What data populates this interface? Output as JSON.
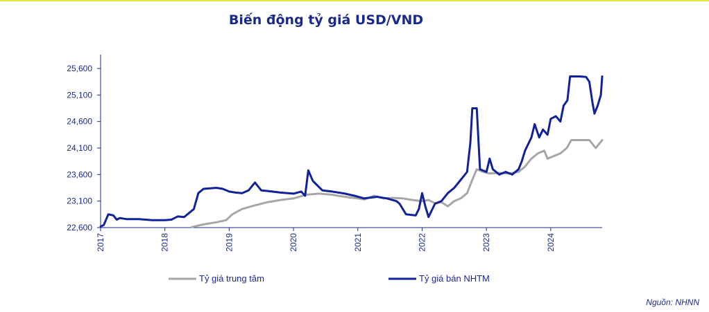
{
  "page": {
    "title": "Biến động tỷ giá USD/VND",
    "source": "Nguồn: NHNN"
  },
  "chart_data": {
    "type": "line",
    "title": "Biến động tỷ giá USD/VND",
    "xlabel": "",
    "ylabel": "",
    "xlim": [
      2017.0,
      2024.8
    ],
    "ylim": [
      22600,
      25600
    ],
    "y_ticks": [
      "22,600",
      "23,100",
      "23,600",
      "24,100",
      "24,600",
      "25,100",
      "25,600"
    ],
    "y_tick_values": [
      22600,
      23100,
      23600,
      24100,
      24600,
      25100,
      25600
    ],
    "x_ticks": [
      "2017",
      "2018",
      "2019",
      "2020",
      "2021",
      "2022",
      "2023",
      "2024"
    ],
    "x_tick_values": [
      2017,
      2018,
      2019,
      2020,
      2021,
      2022,
      2023,
      2024
    ],
    "grid": false,
    "legend_position": "bottom",
    "colors": {
      "text": "#1a2a8c",
      "axis": "#1a2a8c"
    },
    "series": [
      {
        "name": "Tỷ giá trung tâm",
        "color": "#a6a6a6",
        "points": [
          [
            2018.42,
            22610
          ],
          [
            2018.6,
            22660
          ],
          [
            2018.8,
            22700
          ],
          [
            2018.95,
            22740
          ],
          [
            2019.05,
            22850
          ],
          [
            2019.2,
            22950
          ],
          [
            2019.4,
            23020
          ],
          [
            2019.6,
            23080
          ],
          [
            2019.8,
            23120
          ],
          [
            2020.0,
            23150
          ],
          [
            2020.2,
            23220
          ],
          [
            2020.4,
            23240
          ],
          [
            2020.6,
            23220
          ],
          [
            2020.8,
            23180
          ],
          [
            2021.0,
            23150
          ],
          [
            2021.1,
            23130
          ],
          [
            2021.25,
            23200
          ],
          [
            2021.4,
            23150
          ],
          [
            2021.55,
            23160
          ],
          [
            2021.7,
            23150
          ],
          [
            2021.85,
            23120
          ],
          [
            2022.0,
            23100
          ],
          [
            2022.1,
            23120
          ],
          [
            2022.2,
            23060
          ],
          [
            2022.3,
            23080
          ],
          [
            2022.4,
            23000
          ],
          [
            2022.5,
            23100
          ],
          [
            2022.6,
            23150
          ],
          [
            2022.7,
            23250
          ],
          [
            2022.78,
            23500
          ],
          [
            2022.85,
            23700
          ],
          [
            2022.95,
            23650
          ],
          [
            2023.05,
            23620
          ],
          [
            2023.2,
            23630
          ],
          [
            2023.35,
            23620
          ],
          [
            2023.5,
            23650
          ],
          [
            2023.6,
            23750
          ],
          [
            2023.7,
            23900
          ],
          [
            2023.8,
            24000
          ],
          [
            2023.9,
            24050
          ],
          [
            2023.95,
            23900
          ],
          [
            2024.05,
            23950
          ],
          [
            2024.15,
            24000
          ],
          [
            2024.25,
            24100
          ],
          [
            2024.32,
            24250
          ],
          [
            2024.45,
            24250
          ],
          [
            2024.6,
            24250
          ],
          [
            2024.7,
            24100
          ],
          [
            2024.8,
            24250
          ]
        ]
      },
      {
        "name": "Tỷ giá bán NHTM",
        "color": "#10219a",
        "points": [
          [
            2017.0,
            22620
          ],
          [
            2017.05,
            22650
          ],
          [
            2017.12,
            22850
          ],
          [
            2017.2,
            22830
          ],
          [
            2017.25,
            22750
          ],
          [
            2017.3,
            22780
          ],
          [
            2017.4,
            22760
          ],
          [
            2017.6,
            22760
          ],
          [
            2017.8,
            22740
          ],
          [
            2018.0,
            22740
          ],
          [
            2018.1,
            22750
          ],
          [
            2018.2,
            22810
          ],
          [
            2018.3,
            22800
          ],
          [
            2018.4,
            22900
          ],
          [
            2018.45,
            22950
          ],
          [
            2018.52,
            23250
          ],
          [
            2018.6,
            23330
          ],
          [
            2018.8,
            23350
          ],
          [
            2018.9,
            23330
          ],
          [
            2019.0,
            23280
          ],
          [
            2019.1,
            23260
          ],
          [
            2019.2,
            23250
          ],
          [
            2019.3,
            23300
          ],
          [
            2019.4,
            23450
          ],
          [
            2019.5,
            23300
          ],
          [
            2019.6,
            23290
          ],
          [
            2019.8,
            23260
          ],
          [
            2020.0,
            23240
          ],
          [
            2020.12,
            23280
          ],
          [
            2020.18,
            23200
          ],
          [
            2020.23,
            23680
          ],
          [
            2020.3,
            23480
          ],
          [
            2020.45,
            23300
          ],
          [
            2020.6,
            23280
          ],
          [
            2020.8,
            23240
          ],
          [
            2020.95,
            23200
          ],
          [
            2021.1,
            23150
          ],
          [
            2021.3,
            23180
          ],
          [
            2021.45,
            23150
          ],
          [
            2021.6,
            23100
          ],
          [
            2021.65,
            23050
          ],
          [
            2021.75,
            22850
          ],
          [
            2021.9,
            22830
          ],
          [
            2021.95,
            22950
          ],
          [
            2022.0,
            23250
          ],
          [
            2022.05,
            23000
          ],
          [
            2022.1,
            22800
          ],
          [
            2022.2,
            23050
          ],
          [
            2022.3,
            23100
          ],
          [
            2022.4,
            23250
          ],
          [
            2022.5,
            23350
          ],
          [
            2022.6,
            23500
          ],
          [
            2022.7,
            23650
          ],
          [
            2022.75,
            24200
          ],
          [
            2022.78,
            24850
          ],
          [
            2022.85,
            24850
          ],
          [
            2022.9,
            23700
          ],
          [
            2023.0,
            23650
          ],
          [
            2023.05,
            23900
          ],
          [
            2023.1,
            23700
          ],
          [
            2023.2,
            23600
          ],
          [
            2023.3,
            23650
          ],
          [
            2023.4,
            23600
          ],
          [
            2023.5,
            23700
          ],
          [
            2023.55,
            23850
          ],
          [
            2023.6,
            24050
          ],
          [
            2023.7,
            24300
          ],
          [
            2023.75,
            24550
          ],
          [
            2023.82,
            24300
          ],
          [
            2023.88,
            24450
          ],
          [
            2023.95,
            24350
          ],
          [
            2024.0,
            24650
          ],
          [
            2024.08,
            24700
          ],
          [
            2024.15,
            24600
          ],
          [
            2024.2,
            24900
          ],
          [
            2024.26,
            25000
          ],
          [
            2024.3,
            25450
          ],
          [
            2024.45,
            25450
          ],
          [
            2024.55,
            25440
          ],
          [
            2024.6,
            25350
          ],
          [
            2024.65,
            24950
          ],
          [
            2024.68,
            24750
          ],
          [
            2024.73,
            24900
          ],
          [
            2024.78,
            25100
          ],
          [
            2024.8,
            25450
          ]
        ]
      }
    ]
  }
}
